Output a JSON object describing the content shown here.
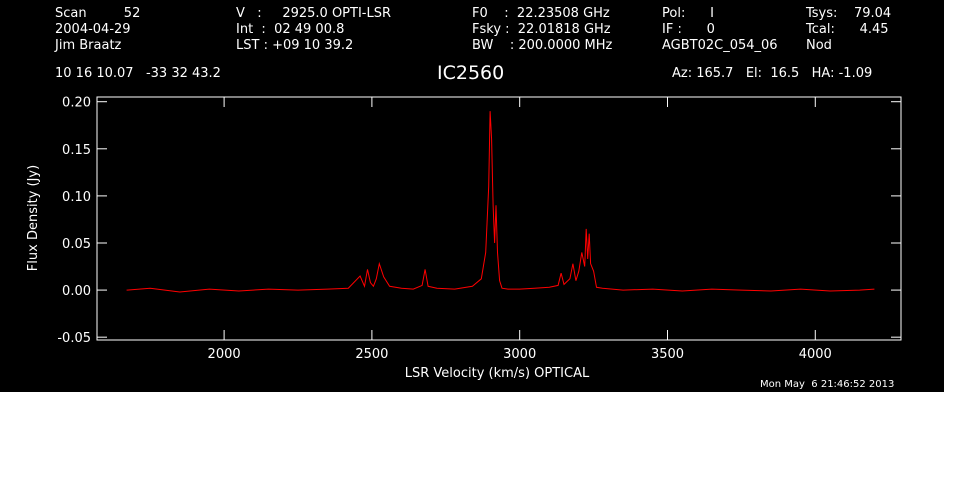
{
  "header": {
    "col1": [
      "Scan         52",
      "2004-04-29",
      "Jim Braatz"
    ],
    "col2": [
      "V   :     2925.0 OPTI-LSR",
      "Int  :  02 49 00.8",
      "LST : +09 10 39.2"
    ],
    "col3": [
      "F0    :  22.23508 GHz",
      "Fsky :  22.01818 GHz",
      "BW    : 200.0000 MHz"
    ],
    "col4": [
      "Pol:      I",
      "IF :      0",
      "AGBT02C_054_06"
    ],
    "col5": [
      "Tsys:    79.04",
      "Tcal:      4.45",
      "Nod"
    ],
    "coords": "10 16 10.07   -33 32 43.2",
    "source": "IC2560",
    "azel": "Az: 165.7   El:  16.5   HA: -1.09"
  },
  "footer_timestamp": "Mon May  6 21:46:52 2013",
  "colors": {
    "background": "#000000",
    "axes": "#ffffff",
    "trace": "#ff0000"
  },
  "chart_data": {
    "type": "line",
    "title": "IC2560",
    "xlabel": "LSR Velocity (km/s) OPTICAL",
    "ylabel": "Flux Density (Jy)",
    "xlim": [
      1570,
      4290
    ],
    "ylim": [
      -0.053,
      0.205
    ],
    "xticks": [
      2000,
      2500,
      3000,
      3500,
      4000
    ],
    "xtick_labels": [
      "2000",
      "2500",
      "3000",
      "3500",
      "4000"
    ],
    "yticks": [
      -0.05,
      0.0,
      0.05,
      0.1,
      0.15,
      0.2
    ],
    "ytick_labels": [
      "-0.05",
      "0.00",
      "0.05",
      "0.10",
      "0.15",
      "0.20"
    ],
    "grid": false,
    "series": [
      {
        "color": "#ff0000",
        "x": [
          1670,
          1750,
          1850,
          1950,
          2050,
          2150,
          2250,
          2350,
          2420,
          2460,
          2475,
          2485,
          2495,
          2505,
          2515,
          2525,
          2540,
          2560,
          2600,
          2640,
          2670,
          2680,
          2690,
          2720,
          2780,
          2840,
          2870,
          2885,
          2895,
          2900,
          2905,
          2910,
          2915,
          2920,
          2925,
          2932,
          2940,
          2960,
          3000,
          3050,
          3100,
          3130,
          3140,
          3150,
          3170,
          3180,
          3190,
          3200,
          3210,
          3220,
          3225,
          3230,
          3235,
          3240,
          3250,
          3260,
          3280,
          3350,
          3450,
          3550,
          3650,
          3750,
          3850,
          3950,
          4050,
          4150,
          4200
        ],
        "y": [
          0.0,
          0.002,
          -0.002,
          0.001,
          -0.001,
          0.001,
          0.0,
          0.001,
          0.002,
          0.015,
          0.004,
          0.022,
          0.008,
          0.004,
          0.012,
          0.028,
          0.014,
          0.004,
          0.002,
          0.001,
          0.005,
          0.022,
          0.004,
          0.002,
          0.001,
          0.004,
          0.012,
          0.04,
          0.11,
          0.19,
          0.16,
          0.09,
          0.05,
          0.09,
          0.04,
          0.01,
          0.002,
          0.001,
          0.001,
          0.002,
          0.003,
          0.005,
          0.018,
          0.006,
          0.012,
          0.028,
          0.01,
          0.02,
          0.04,
          0.025,
          0.065,
          0.033,
          0.06,
          0.028,
          0.02,
          0.003,
          0.002,
          0.0,
          0.001,
          -0.001,
          0.001,
          0.0,
          -0.001,
          0.001,
          -0.001,
          0.0,
          0.001
        ]
      }
    ]
  }
}
